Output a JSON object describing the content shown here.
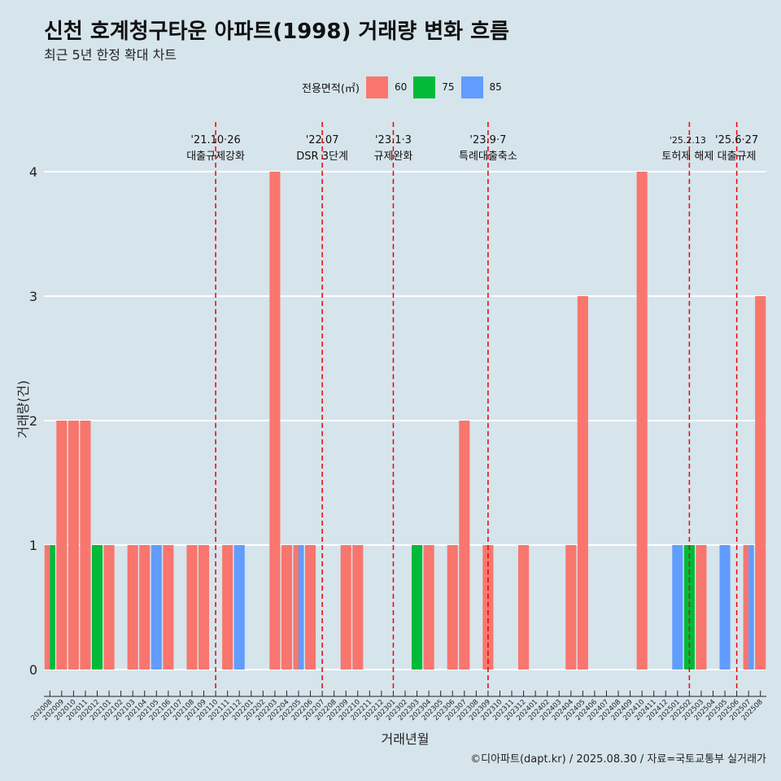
{
  "header": {
    "title": "신천 호계청구타운 아파트(1998) 거래량 변화 흐름",
    "subtitle": "최근 5년 한정 확대 차트"
  },
  "legend": {
    "title": "전용면적(㎡)",
    "items": [
      {
        "label": "60",
        "color": "#f8766d"
      },
      {
        "label": "75",
        "color": "#00ba38"
      },
      {
        "label": "85",
        "color": "#619cff"
      }
    ]
  },
  "caption": "©디아파트(dapt.kr) / 2025.08.30 / 자료=국토교통부 실거래가",
  "chart_data": {
    "type": "bar",
    "xlabel": "거래년월",
    "ylabel": "거래량(건)",
    "ylim": [
      0,
      4
    ],
    "yticks": [
      0,
      1,
      2,
      3,
      4
    ],
    "grid": true,
    "legend_position": "top",
    "categories": [
      "202008",
      "202009",
      "202010",
      "202011",
      "202012",
      "202101",
      "202102",
      "202103",
      "202104",
      "202105",
      "202106",
      "202107",
      "202108",
      "202109",
      "202110",
      "202111",
      "202112",
      "202201",
      "202202",
      "202203",
      "202204",
      "202205",
      "202206",
      "202207",
      "202208",
      "202209",
      "202210",
      "202211",
      "202212",
      "202301",
      "202302",
      "202303",
      "202304",
      "202305",
      "202306",
      "202307",
      "202308",
      "202309",
      "202310",
      "202311",
      "202312",
      "202401",
      "202402",
      "202403",
      "202404",
      "202405",
      "202406",
      "202407",
      "202408",
      "202409",
      "202410",
      "202411",
      "202412",
      "202501",
      "202502",
      "202503",
      "202504",
      "202505",
      "202506",
      "202507",
      "202508"
    ],
    "series": [
      {
        "name": "60",
        "color": "#f8766d",
        "values": [
          1,
          2,
          2,
          2,
          0,
          1,
          0,
          1,
          1,
          0,
          1,
          0,
          1,
          1,
          0,
          1,
          0,
          0,
          0,
          4,
          1,
          1,
          1,
          0,
          0,
          1,
          1,
          0,
          0,
          0,
          0,
          0,
          1,
          0,
          1,
          2,
          0,
          1,
          0,
          0,
          1,
          0,
          0,
          0,
          1,
          3,
          0,
          0,
          0,
          0,
          4,
          0,
          0,
          0,
          0,
          1,
          0,
          0,
          0,
          1,
          3
        ]
      },
      {
        "name": "75",
        "color": "#00ba38",
        "values": [
          1,
          0,
          0,
          0,
          1,
          0,
          0,
          0,
          0,
          0,
          0,
          0,
          0,
          0,
          0,
          0,
          0,
          0,
          0,
          0,
          0,
          0,
          0,
          0,
          0,
          0,
          0,
          0,
          0,
          0,
          0,
          1,
          0,
          0,
          0,
          0,
          0,
          0,
          0,
          0,
          0,
          0,
          0,
          0,
          0,
          0,
          0,
          0,
          0,
          0,
          0,
          0,
          0,
          0,
          1,
          0,
          0,
          0,
          0,
          0,
          0
        ]
      },
      {
        "name": "85",
        "color": "#619cff",
        "values": [
          0,
          0,
          0,
          0,
          0,
          0,
          0,
          0,
          0,
          1,
          0,
          0,
          0,
          0,
          0,
          0,
          1,
          0,
          0,
          0,
          0,
          1,
          0,
          0,
          0,
          0,
          0,
          0,
          0,
          0,
          0,
          0,
          0,
          0,
          0,
          0,
          0,
          0,
          0,
          0,
          0,
          0,
          0,
          0,
          0,
          0,
          0,
          0,
          0,
          0,
          0,
          0,
          0,
          1,
          0,
          0,
          0,
          1,
          0,
          1,
          0
        ]
      }
    ],
    "annotations": [
      {
        "line1": "'21.10·26",
        "line2": "대출규제강화",
        "at": "202110"
      },
      {
        "line1": "'22.07",
        "line2": "DSR 3단계",
        "at": "202207"
      },
      {
        "line1": "'23.1·3",
        "line2": "규제완화",
        "at": "202301"
      },
      {
        "line1": "'23.9·7",
        "line2": "특례대출축소",
        "at": "202309"
      },
      {
        "line1": "'25.2.13",
        "line2": "토허제 해제",
        "at": "202502"
      },
      {
        "line1": "'25.6·27",
        "line2": "대출규제",
        "at": "202506"
      }
    ]
  }
}
